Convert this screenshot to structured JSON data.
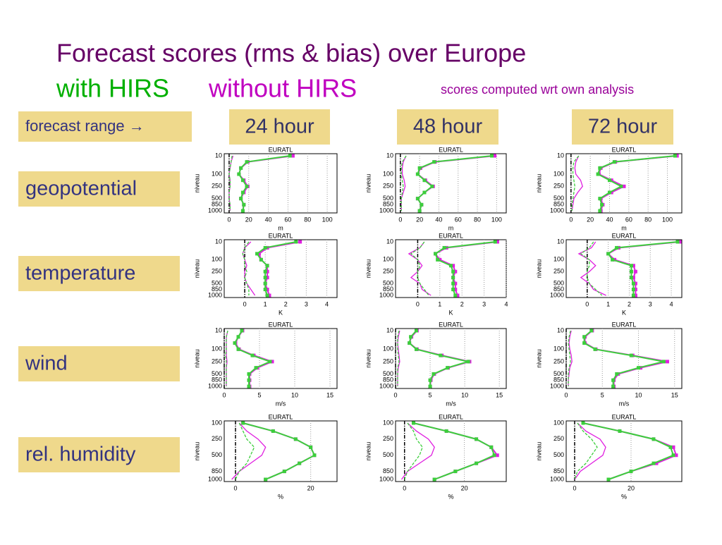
{
  "slide": {
    "title": "Forecast scores (rms & bias) over Europe",
    "with_label": "with HIRS",
    "without_label": "without HIRS",
    "note": "scores computed wrt own analysis",
    "range_label": "forecast range →",
    "columns": [
      "24 hour",
      "48 hour",
      "72 hour"
    ],
    "rows": [
      "geopotential",
      "temperature",
      "wind",
      "rel. humidity"
    ]
  },
  "chart_data": [
    {
      "type": "line",
      "title": "EURATL",
      "y_label": "niveau",
      "x_label": "m",
      "categories": [
        "10",
        null,
        null,
        "100",
        null,
        "250",
        null,
        "500",
        "850",
        "1000"
      ],
      "xlim": [
        -5,
        110
      ],
      "xticks": [
        0,
        20,
        40,
        60,
        80,
        100
      ],
      "reference_x": 0,
      "series": [
        {
          "color": "#e020e0",
          "style": "markers",
          "values": [
            65,
            19,
            12,
            10,
            15,
            19,
            15,
            12,
            15,
            14
          ]
        },
        {
          "color": "#3ccf3c",
          "style": "markers",
          "values": [
            62,
            18,
            12,
            10,
            14,
            18,
            14,
            12,
            15,
            14
          ]
        },
        {
          "color": "#e020e0",
          "style": "solid",
          "values": [
            4,
            2,
            1,
            0,
            1,
            1,
            0,
            0,
            1,
            1
          ]
        },
        {
          "color": "#3ccf3c",
          "style": "dashed",
          "values": [
            3,
            2,
            1,
            0,
            1,
            1,
            0,
            0,
            1,
            1
          ]
        }
      ]
    },
    {
      "type": "line",
      "title": "EURATL",
      "y_label": "niveau",
      "x_label": "m",
      "categories": [
        "10",
        null,
        null,
        "100",
        null,
        "250",
        null,
        "500",
        "850",
        "1000"
      ],
      "xlim": [
        -5,
        110
      ],
      "xticks": [
        0,
        20,
        40,
        60,
        80,
        100
      ],
      "reference_x": 0,
      "series": [
        {
          "color": "#e020e0",
          "style": "markers",
          "values": [
            98,
            36,
            21,
            18,
            26,
            34,
            25,
            18,
            22,
            20
          ]
        },
        {
          "color": "#3ccf3c",
          "style": "markers",
          "values": [
            95,
            35,
            20,
            18,
            25,
            33,
            25,
            18,
            22,
            20
          ]
        },
        {
          "color": "#e020e0",
          "style": "solid",
          "values": [
            6,
            3,
            2,
            2,
            4,
            5,
            3,
            1,
            1,
            1
          ]
        },
        {
          "color": "#3ccf3c",
          "style": "dashed",
          "values": [
            6,
            2,
            1,
            1,
            2,
            3,
            2,
            1,
            1,
            1
          ]
        }
      ]
    },
    {
      "type": "line",
      "title": "EURATL",
      "y_label": "niveau",
      "x_label": "m",
      "categories": [
        "10",
        null,
        null,
        "100",
        null,
        "250",
        null,
        "500",
        "850",
        "1000"
      ],
      "xlim": [
        -5,
        115
      ],
      "xticks": [
        0,
        20,
        40,
        60,
        80,
        100
      ],
      "reference_x": 0,
      "series": [
        {
          "color": "#e020e0",
          "style": "markers",
          "values": [
            110,
            46,
            31,
            29,
            42,
            55,
            42,
            31,
            33,
            31
          ]
        },
        {
          "color": "#3ccf3c",
          "style": "markers",
          "values": [
            108,
            45,
            30,
            28,
            40,
            52,
            40,
            30,
            32,
            30
          ]
        },
        {
          "color": "#e020e0",
          "style": "solid",
          "values": [
            8,
            5,
            4,
            5,
            10,
            12,
            7,
            3,
            2,
            1
          ]
        },
        {
          "color": "#3ccf3c",
          "style": "dashed",
          "values": [
            8,
            3,
            2,
            2,
            3,
            4,
            3,
            2,
            1,
            1
          ]
        }
      ]
    },
    {
      "type": "line",
      "title": "EURATL",
      "y_label": "niveau",
      "x_label": "K",
      "categories": [
        "10",
        null,
        null,
        "100",
        null,
        "250",
        null,
        "500",
        "850",
        "1000"
      ],
      "xlim": [
        -1,
        4.5
      ],
      "xticks": [
        0,
        1,
        2,
        3,
        4
      ],
      "reference_x": 0,
      "series": [
        {
          "color": "#e020e0",
          "style": "markers",
          "values": [
            2.7,
            1.1,
            0.7,
            0.8,
            1.1,
            1.1,
            1.1,
            1.0,
            1.1,
            1.2
          ]
        },
        {
          "color": "#3ccf3c",
          "style": "markers",
          "values": [
            2.5,
            1.0,
            0.6,
            0.8,
            1.1,
            1.0,
            1.0,
            1.0,
            1.0,
            1.1
          ]
        },
        {
          "color": "#e020e0",
          "style": "solid",
          "values": [
            0.3,
            0.0,
            -0.1,
            0.0,
            0.1,
            0.0,
            0.0,
            0.1,
            0.3,
            0.5
          ]
        },
        {
          "color": "#3ccf3c",
          "style": "dashed",
          "values": [
            0.2,
            0.0,
            -0.1,
            0.0,
            0.0,
            0.1,
            0.0,
            0.1,
            0.2,
            0.2
          ]
        }
      ]
    },
    {
      "type": "line",
      "title": "EURATL",
      "y_label": "niveau",
      "x_label": "K",
      "categories": [
        "10",
        null,
        null,
        "100",
        null,
        "250",
        null,
        "500",
        "850",
        "1000"
      ],
      "xlim": [
        -1,
        4
      ],
      "xticks": [
        0,
        1,
        2,
        3,
        4
      ],
      "reference_x": 0,
      "series": [
        {
          "color": "#e020e0",
          "style": "markers",
          "values": [
            3.6,
            1.3,
            0.8,
            1.0,
            1.6,
            1.7,
            1.6,
            1.7,
            1.7,
            1.8
          ]
        },
        {
          "color": "#3ccf3c",
          "style": "markers",
          "values": [
            3.5,
            1.2,
            0.8,
            0.9,
            1.5,
            1.6,
            1.6,
            1.6,
            1.6,
            1.7
          ]
        },
        {
          "color": "#e020e0",
          "style": "solid",
          "values": [
            0.3,
            0.1,
            -0.4,
            0.0,
            0.2,
            0.0,
            -0.3,
            0.1,
            0.2,
            0.6
          ]
        },
        {
          "color": "#3ccf3c",
          "style": "dashed",
          "values": [
            0.3,
            0.1,
            -0.3,
            0.0,
            0.1,
            0.0,
            0.0,
            0.1,
            0.3,
            0.5
          ]
        }
      ]
    },
    {
      "type": "line",
      "title": "EURATL",
      "y_label": "niveau",
      "x_label": "K",
      "categories": [
        "10",
        null,
        null,
        "100",
        null,
        "250",
        null,
        "500",
        "850",
        "1000"
      ],
      "xlim": [
        -1,
        4.5
      ],
      "xticks": [
        0,
        1,
        2,
        3,
        4
      ],
      "reference_x": 0,
      "series": [
        {
          "color": "#e020e0",
          "style": "markers",
          "values": [
            4.4,
            1.5,
            1.0,
            1.3,
            2.2,
            2.3,
            2.2,
            2.3,
            2.3,
            2.3
          ]
        },
        {
          "color": "#3ccf3c",
          "style": "markers",
          "values": [
            4.3,
            1.4,
            1.0,
            1.2,
            2.1,
            2.1,
            2.1,
            2.2,
            2.2,
            2.2
          ]
        },
        {
          "color": "#e020e0",
          "style": "solid",
          "values": [
            0.4,
            0.2,
            -0.4,
            0.1,
            0.4,
            0.1,
            -0.3,
            0.1,
            0.3,
            0.9
          ]
        },
        {
          "color": "#3ccf3c",
          "style": "dashed",
          "values": [
            0.3,
            0.1,
            -0.3,
            0.1,
            0.1,
            0.0,
            0.0,
            0.1,
            0.4,
            0.7
          ]
        }
      ]
    },
    {
      "type": "line",
      "title": "EURATL",
      "y_label": "niveau",
      "x_label": "m/s",
      "categories": [
        "10",
        null,
        null,
        "100",
        null,
        "250",
        null,
        "500",
        "850",
        "1000"
      ],
      "xlim": [
        0,
        16
      ],
      "xticks": [
        0,
        5,
        10,
        15
      ],
      "reference_x": 0,
      "series": [
        {
          "color": "#e020e0",
          "style": "markers",
          "values": [
            2.6,
            2.0,
            1.6,
            2.1,
            4.2,
            6.8,
            4.7,
            3.6,
            3.6,
            3.6
          ]
        },
        {
          "color": "#3ccf3c",
          "style": "markers",
          "values": [
            2.5,
            2.0,
            1.5,
            2.0,
            4.0,
            6.5,
            4.5,
            3.5,
            3.5,
            3.5
          ]
        },
        {
          "color": "#e020e0",
          "style": "solid",
          "values": [
            0.5,
            0.3,
            0.3,
            0.3,
            0.3,
            0.4,
            0.3,
            0.3,
            0.3,
            0.3
          ]
        },
        {
          "color": "#3ccf3c",
          "style": "dashed",
          "values": [
            0.5,
            0.3,
            0.3,
            0.3,
            0.2,
            0.3,
            0.3,
            0.3,
            0.3,
            0.3
          ]
        }
      ]
    },
    {
      "type": "line",
      "title": "EURATL",
      "y_label": "niveau",
      "x_label": "m/s",
      "categories": [
        "10",
        null,
        null,
        "100",
        null,
        "250",
        null,
        "500",
        "850",
        "1000"
      ],
      "xlim": [
        0,
        16
      ],
      "xticks": [
        0,
        5,
        10,
        15
      ],
      "reference_x": 0,
      "series": [
        {
          "color": "#e020e0",
          "style": "markers",
          "values": [
            3.1,
            2.3,
            2.0,
            3.1,
            6.7,
            10.7,
            7.6,
            5.6,
            5.1,
            5.0
          ]
        },
        {
          "color": "#3ccf3c",
          "style": "markers",
          "values": [
            3.0,
            2.2,
            2.0,
            3.0,
            6.5,
            10.5,
            7.5,
            5.5,
            5.0,
            5.0
          ]
        },
        {
          "color": "#e020e0",
          "style": "solid",
          "values": [
            0.6,
            0.4,
            0.3,
            0.4,
            0.5,
            0.6,
            0.4,
            0.3,
            0.3,
            0.3
          ]
        },
        {
          "color": "#3ccf3c",
          "style": "dashed",
          "values": [
            0.5,
            0.3,
            0.3,
            0.3,
            0.4,
            0.5,
            0.3,
            0.3,
            0.3,
            0.3
          ]
        }
      ]
    },
    {
      "type": "line",
      "title": "EURATL",
      "y_label": "niveau",
      "x_label": "m/s",
      "categories": [
        "10",
        null,
        null,
        "100",
        null,
        "250",
        null,
        "500",
        "850",
        "1000"
      ],
      "xlim": [
        0,
        16
      ],
      "xticks": [
        0,
        5,
        10,
        15
      ],
      "reference_x": 0,
      "series": [
        {
          "color": "#e020e0",
          "style": "markers",
          "values": [
            3.6,
            2.6,
            2.6,
            4.1,
            9.2,
            14.0,
            10.3,
            7.2,
            6.6,
            6.6
          ]
        },
        {
          "color": "#3ccf3c",
          "style": "markers",
          "values": [
            3.5,
            2.5,
            2.5,
            4.0,
            9.0,
            13.5,
            10.0,
            7.0,
            6.5,
            6.5
          ]
        },
        {
          "color": "#e020e0",
          "style": "solid",
          "values": [
            0.7,
            0.5,
            0.4,
            0.5,
            0.7,
            0.8,
            0.5,
            0.4,
            0.3,
            0.3
          ]
        },
        {
          "color": "#3ccf3c",
          "style": "dashed",
          "values": [
            0.6,
            0.4,
            0.3,
            0.4,
            0.5,
            0.6,
            0.4,
            0.3,
            0.3,
            0.3
          ]
        }
      ]
    },
    {
      "type": "line",
      "title": "EURATL",
      "y_label": "niveau",
      "x_label": "%",
      "categories": [
        "100",
        null,
        "250",
        null,
        "500",
        null,
        "850",
        "1000"
      ],
      "xlim": [
        -3,
        27
      ],
      "xticks": [
        0,
        20
      ],
      "reference_x": 0,
      "series": [
        {
          "color": "#e020e0",
          "style": "markers",
          "values": [
            2,
            10,
            16,
            20,
            21,
            17,
            13,
            8
          ]
        },
        {
          "color": "#3ccf3c",
          "style": "markers",
          "values": [
            2,
            10,
            16,
            20,
            21,
            17,
            13,
            8
          ]
        },
        {
          "color": "#e020e0",
          "style": "solid",
          "values": [
            1,
            3,
            6,
            8,
            7,
            4,
            1,
            -1
          ]
        },
        {
          "color": "#3ccf3c",
          "style": "dashed",
          "values": [
            1,
            2,
            3,
            5,
            4,
            3,
            1,
            0
          ]
        }
      ]
    },
    {
      "type": "line",
      "title": "EURATL",
      "y_label": "niveau",
      "x_label": "%",
      "categories": [
        "100",
        null,
        "250",
        null,
        "500",
        null,
        "850",
        "1000"
      ],
      "xlim": [
        -3,
        34
      ],
      "xticks": [
        0,
        20
      ],
      "reference_x": 0,
      "series": [
        {
          "color": "#e020e0",
          "style": "markers",
          "values": [
            3,
            14,
            24,
            29,
            31,
            24,
            17,
            10
          ]
        },
        {
          "color": "#3ccf3c",
          "style": "markers",
          "values": [
            3,
            14,
            24,
            29,
            30,
            24,
            17,
            10
          ]
        },
        {
          "color": "#e020e0",
          "style": "solid",
          "values": [
            1,
            4,
            8,
            10,
            9,
            5,
            1,
            -1
          ]
        },
        {
          "color": "#3ccf3c",
          "style": "dashed",
          "values": [
            1,
            3,
            4,
            6,
            5,
            3,
            1,
            0
          ]
        }
      ]
    },
    {
      "type": "line",
      "title": "EURATL",
      "y_label": "niveau",
      "x_label": "%",
      "categories": [
        "100",
        null,
        "250",
        null,
        "500",
        null,
        "850",
        "1000"
      ],
      "xlim": [
        -3,
        38
      ],
      "xticks": [
        0,
        20
      ],
      "reference_x": 0,
      "series": [
        {
          "color": "#e020e0",
          "style": "markers",
          "values": [
            3,
            16,
            28,
            35,
            36,
            29,
            20,
            12
          ]
        },
        {
          "color": "#3ccf3c",
          "style": "markers",
          "values": [
            3,
            16,
            28,
            34,
            35,
            28,
            20,
            12
          ]
        },
        {
          "color": "#e020e0",
          "style": "solid",
          "values": [
            1,
            4,
            9,
            11,
            10,
            6,
            2,
            0
          ]
        },
        {
          "color": "#3ccf3c",
          "style": "dashed",
          "values": [
            1,
            3,
            6,
            8,
            6,
            4,
            1,
            0
          ]
        }
      ]
    }
  ]
}
